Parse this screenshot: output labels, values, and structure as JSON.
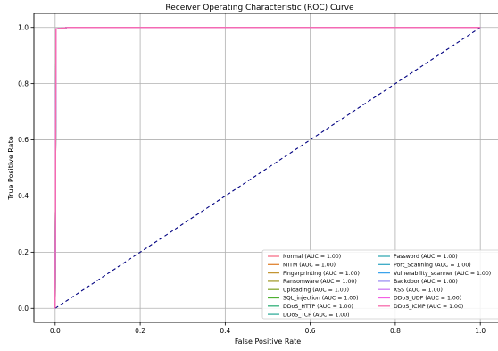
{
  "chart_data": {
    "type": "line",
    "title": "Receiver Operating Characteristic (ROC) Curve",
    "xlabel": "False Positive Rate",
    "ylabel": "True Positive Rate",
    "xlim": [
      -0.05,
      1.05
    ],
    "ylim": [
      -0.05,
      1.05
    ],
    "xticks": [
      0.0,
      0.2,
      0.4,
      0.6,
      0.8,
      1.0
    ],
    "yticks": [
      0.0,
      0.2,
      0.4,
      0.6,
      0.8,
      1.0
    ],
    "xtick_labels": [
      "0.0",
      "0.2",
      "0.4",
      "0.6",
      "0.8",
      "1.0"
    ],
    "ytick_labels": [
      "0.0",
      "0.2",
      "0.4",
      "0.6",
      "0.8",
      "1.0"
    ],
    "grid": true,
    "legend_position": "lower-right",
    "legend_columns": 2,
    "diagonal": {
      "x": [
        0,
        1
      ],
      "y": [
        0,
        1
      ],
      "color": "#000080",
      "style": "dashed"
    },
    "series": [
      {
        "name": "Normal (AUC = 1.00)",
        "color": "#f77189",
        "x": [
          0,
          0.002,
          0.03,
          1
        ],
        "y": [
          0,
          0.995,
          1,
          1
        ]
      },
      {
        "name": "MITM (AUC = 1.00)",
        "color": "#e18432",
        "x": [
          0,
          0.002,
          0.03,
          1
        ],
        "y": [
          0,
          0.995,
          1,
          1
        ]
      },
      {
        "name": "Fingerprinting (AUC = 1.00)",
        "color": "#c39532",
        "x": [
          0,
          0.002,
          0.03,
          1
        ],
        "y": [
          0,
          0.995,
          1,
          1
        ]
      },
      {
        "name": "Ransomware (AUC = 1.00)",
        "color": "#a79f32",
        "x": [
          0,
          0.002,
          0.03,
          1
        ],
        "y": [
          0,
          0.995,
          1,
          1
        ]
      },
      {
        "name": "Uploading (AUC = 1.00)",
        "color": "#87a832",
        "x": [
          0,
          0.002,
          0.03,
          1
        ],
        "y": [
          0,
          0.995,
          1,
          1
        ]
      },
      {
        "name": "SQL_injection (AUC = 1.00)",
        "color": "#4fb032",
        "x": [
          0,
          0.002,
          0.03,
          1
        ],
        "y": [
          0,
          0.995,
          1,
          1
        ]
      },
      {
        "name": "DDoS_HTTP (AUC = 1.00)",
        "color": "#33b07a",
        "x": [
          0,
          0.002,
          0.03,
          1
        ],
        "y": [
          0,
          0.995,
          1,
          1
        ]
      },
      {
        "name": "DDoS_TCP (AUC = 1.00)",
        "color": "#35ad9c",
        "x": [
          0,
          0.002,
          0.03,
          1
        ],
        "y": [
          0,
          0.995,
          1,
          1
        ]
      },
      {
        "name": "Password (AUC = 1.00)",
        "color": "#37abb4",
        "x": [
          0,
          0.002,
          0.03,
          1
        ],
        "y": [
          0,
          0.995,
          1,
          1
        ]
      },
      {
        "name": "Port_Scanning (AUC = 1.00)",
        "color": "#38a9c5",
        "x": [
          0,
          0.002,
          0.03,
          1
        ],
        "y": [
          0,
          0.995,
          1,
          1
        ]
      },
      {
        "name": "Vulnerability_scanner (AUC = 1.00)",
        "color": "#3ba3ec",
        "x": [
          0,
          0.002,
          0.03,
          1
        ],
        "y": [
          0,
          0.995,
          1,
          1
        ]
      },
      {
        "name": "Backdoor (AUC = 1.00)",
        "color": "#9d91f2",
        "x": [
          0,
          0.002,
          0.03,
          1
        ],
        "y": [
          0,
          0.995,
          1,
          1
        ]
      },
      {
        "name": "XSS (AUC = 1.00)",
        "color": "#cc7af4",
        "x": [
          0,
          0.002,
          0.03,
          1
        ],
        "y": [
          0,
          0.995,
          1,
          1
        ]
      },
      {
        "name": "DDoS_UDP (AUC = 1.00)",
        "color": "#f45fe4",
        "x": [
          0,
          0.002,
          0.03,
          1
        ],
        "y": [
          0,
          0.995,
          1,
          1
        ]
      },
      {
        "name": "DDoS_ICMP (AUC = 1.00)",
        "color": "#f66bac",
        "x": [
          0,
          0.002,
          0.03,
          1
        ],
        "y": [
          0,
          0.995,
          1,
          1
        ]
      }
    ]
  }
}
